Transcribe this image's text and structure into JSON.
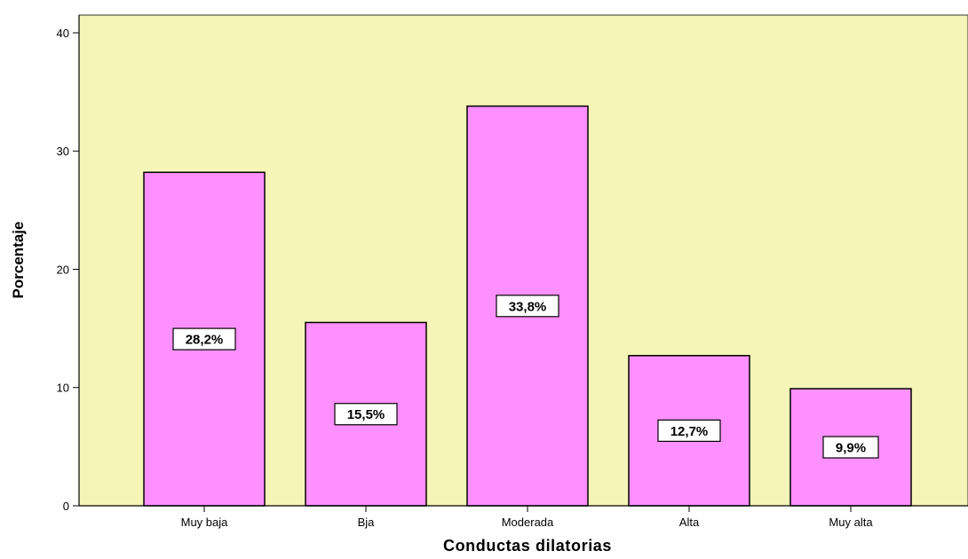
{
  "chart_data": {
    "type": "bar",
    "categories": [
      "Muy baja",
      "Bja",
      "Moderada",
      "Alta",
      "Muy alta"
    ],
    "values": [
      28.2,
      15.5,
      33.8,
      12.7,
      9.9
    ],
    "data_labels": [
      "28,2%",
      "15,5%",
      "33,8%",
      "12,7%",
      "9,9%"
    ],
    "title": "",
    "xlabel": "Conductas dilatorias",
    "ylabel": "Porcentaje",
    "ylim": [
      0,
      41.5
    ],
    "yticks": [
      0,
      10,
      20,
      30,
      40
    ],
    "grid": false,
    "colors": {
      "plot_background": "#f5f5b8",
      "bar_fill": "#ff90ff",
      "bar_stroke": "#000000",
      "label_box": "#ffffff"
    }
  }
}
